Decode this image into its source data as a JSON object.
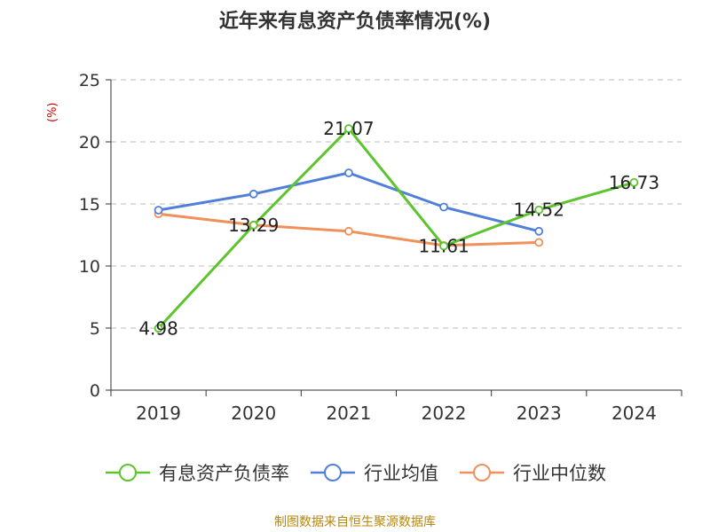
{
  "chart_data": {
    "type": "line",
    "title": "近年来有息资产负债率情况(%)",
    "ylabel": "(%)",
    "xlabel": "",
    "categories": [
      "2019",
      "2020",
      "2021",
      "2022",
      "2023",
      "2024"
    ],
    "ylim": [
      0,
      25
    ],
    "yticks": [
      0,
      5,
      10,
      15,
      20,
      25
    ],
    "grid": true,
    "legend_position": "bottom",
    "series": [
      {
        "name": "有息资产负债率",
        "color": "#5cc42d",
        "values": [
          4.98,
          13.29,
          21.07,
          11.61,
          14.52,
          16.73
        ],
        "labels": [
          "4.98",
          "13.29",
          "21.07",
          "11.61",
          "14.52",
          "16.73"
        ]
      },
      {
        "name": "行业均值",
        "color": "#4f7fd9",
        "values": [
          14.5,
          15.8,
          17.5,
          14.75,
          12.8,
          null
        ]
      },
      {
        "name": "行业中位数",
        "color": "#f0905a",
        "values": [
          14.2,
          13.3,
          12.8,
          11.65,
          11.9,
          null
        ]
      }
    ]
  },
  "source": "制图数据来自恒生聚源数据库"
}
